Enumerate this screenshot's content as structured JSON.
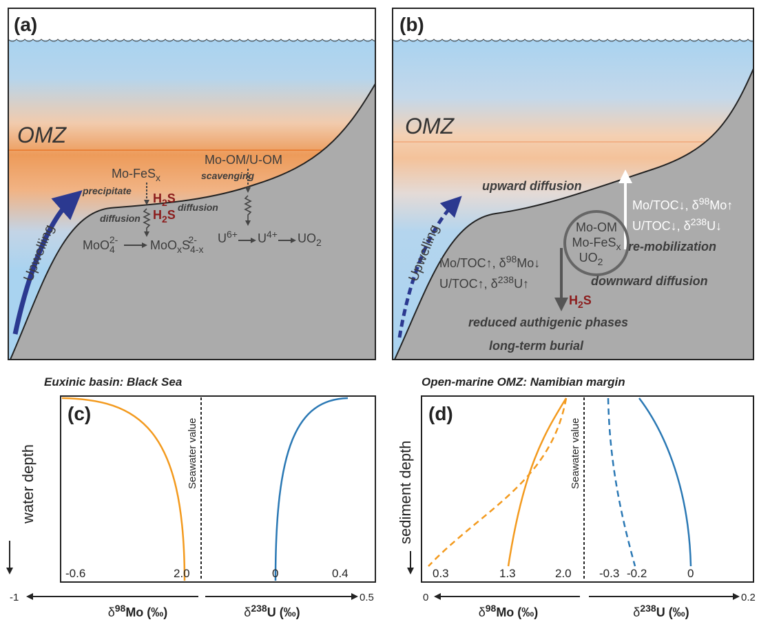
{
  "panel_a": {
    "label": "(a)",
    "omz": "OMZ",
    "upwelling": "Upwelling",
    "mo_fes": [
      "Mo-FeS",
      "x"
    ],
    "precipitate": "precipitate",
    "diffusion_1": "diffusion",
    "h2s_1": [
      "H",
      "2",
      "S"
    ],
    "h2s_2": [
      "H",
      "2",
      "S"
    ],
    "mo_om": "Mo-OM/U-OM",
    "scavenging": "scavenging",
    "diffusion_2": "diffusion",
    "moo4": [
      "MoO",
      "4",
      "2-"
    ],
    "mooxs": [
      "MoO",
      "x",
      "S",
      "4-x",
      "2-"
    ],
    "u6": [
      "U",
      "6+"
    ],
    "u4": [
      "U",
      "4+"
    ],
    "uo2": [
      "UO",
      "2"
    ]
  },
  "panel_b": {
    "label": "(b)",
    "omz": "OMZ",
    "upwelling": "Upwelling",
    "upward": "upward diffusion",
    "white_mo": [
      "Mo/TOC↓, δ",
      "98",
      "Mo↑"
    ],
    "white_u": [
      "U/TOC↓, δ",
      "238",
      "U↓"
    ],
    "remob": "re-mobilization",
    "circle_1": "Mo-OM",
    "circle_2": [
      "Mo-FeS",
      "x"
    ],
    "circle_3": [
      "UO",
      "2"
    ],
    "dark_mo": [
      "Mo/TOC↑, δ",
      "98",
      "Mo↓"
    ],
    "dark_u": [
      "U/TOC↑, δ",
      "238",
      "U↑"
    ],
    "downward": "downward diffusion",
    "h2s": [
      "H",
      "2",
      "S"
    ],
    "reduced": "reduced authigenic phases",
    "burial": "long-term burial"
  },
  "panel_c": {
    "title": "Euxinic basin: Black Sea",
    "label": "(c)",
    "y_axis": "water depth",
    "seawater": "Seawater value",
    "values": [
      "-0.6",
      "2.0",
      "0",
      "0.4"
    ],
    "axis_left_end": "-1",
    "axis_right_end": "0.5",
    "x_left": [
      "δ",
      "98",
      "Mo (‰)"
    ],
    "x_right": [
      "δ",
      "238",
      "U (‰)"
    ]
  },
  "panel_d": {
    "title": "Open-marine OMZ: Namibian margin",
    "label": "(d)",
    "y_axis": "sediment depth",
    "seawater": "Seawater value",
    "values": [
      "0.3",
      "1.3",
      "2.0",
      "-0.3",
      "-0.2",
      "0"
    ],
    "axis_left_end": "0",
    "axis_right_end": "0.2",
    "x_left": [
      "δ",
      "98",
      "Mo (‰)"
    ],
    "x_right": [
      "δ",
      "238",
      "U (‰)"
    ]
  }
}
